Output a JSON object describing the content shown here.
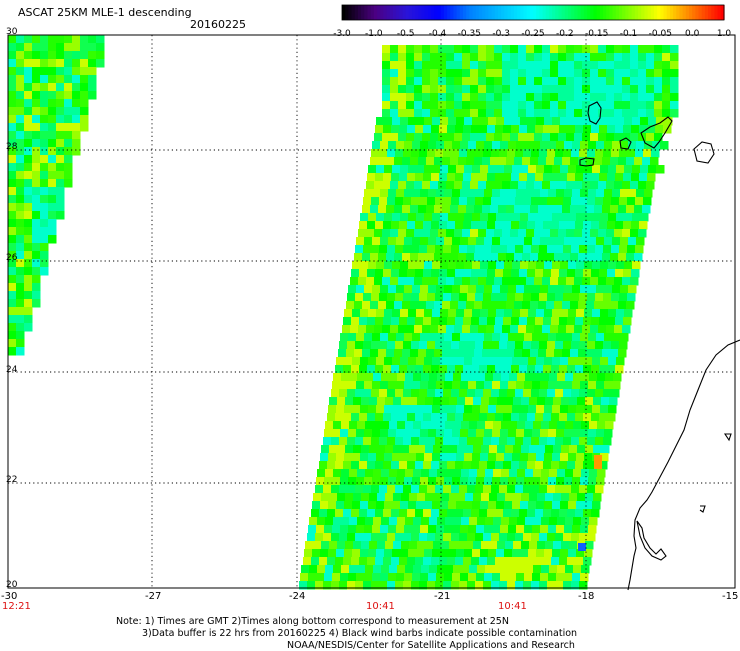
{
  "header": {
    "title": "ASCAT 25KM MLE-1 descending",
    "date": "20160225"
  },
  "colorbar": {
    "labels": [
      "-3.0",
      "-1.0",
      "-0.5",
      "-0.4",
      "-0.35",
      "-0.3",
      "-0.25",
      "-0.2",
      "-0.15",
      "-0.1",
      "-0.05",
      "0.0",
      "1.0"
    ],
    "colors": [
      "#000000",
      "#4b0082",
      "#2a14d8",
      "#0000ff",
      "#0080ff",
      "#00c0ff",
      "#00ffff",
      "#00ff80",
      "#00ff00",
      "#80ff00",
      "#ffff00",
      "#ff8000",
      "#ff0000"
    ]
  },
  "map": {
    "lon_range": [
      -30,
      -15
    ],
    "lat_range": [
      20,
      30
    ],
    "x_ticks": [
      "-30",
      "-27",
      "-24",
      "-21",
      "-18",
      "-15"
    ],
    "y_ticks": [
      "30",
      "28",
      "26",
      "24",
      "22",
      "20"
    ],
    "pass_times": [
      "12:21",
      "10:41",
      "10:41"
    ]
  },
  "notes": {
    "line1": "Note: 1) Times are GMT 2)Times along bottom correspond to measurement at 25N",
    "line2": "3)Data buffer is 22 hrs from 20160225 4) Black wind barbs indicate possible contamination",
    "line3": "NOAA/NESDIS/Center for Satellite Applications and Research"
  }
}
